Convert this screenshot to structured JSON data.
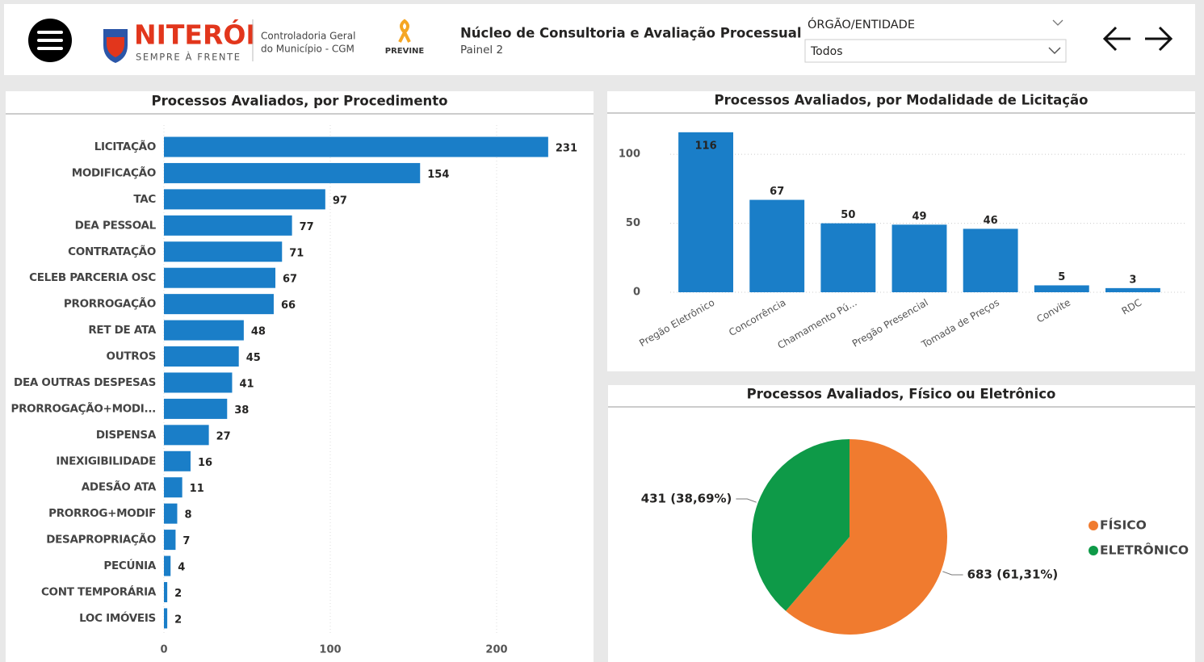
{
  "header": {
    "logo_title": "NITERÓI",
    "logo_subtitle": "SEMPRE À FRENTE",
    "org_line1": "Controladoria Geral",
    "org_line2": "do Município - CGM",
    "badge": "PREVINE",
    "title": "Núcleo de Consultoria e Avaliação Processual",
    "subtitle": "Painel 2",
    "filter_label": "ÓRGÃO/ENTIDADE",
    "filter_value": "Todos"
  },
  "chart_data": [
    {
      "type": "bar",
      "horizontal": true,
      "title": "Processos Avaliados, por Procedimento",
      "color": "#1a7ec8",
      "grid": true,
      "categories": [
        "LICITAÇÃO",
        "MODIFICAÇÃO",
        "TAC",
        "DEA PESSOAL",
        "CONTRATAÇÃO",
        "CELEB PARCERIA OSC",
        "PRORROGAÇÃO",
        "RET DE ATA",
        "OUTROS",
        "DEA OUTRAS DESPESAS",
        "PRORROGAÇÃO+MODI...",
        "DISPENSA",
        "INEXIGIBILIDADE",
        "ADESÃO ATA",
        "PRORROG+MODIF",
        "DESAPROPRIAÇÃO",
        "PECÚNIA",
        "CONT TEMPORÁRIA",
        "LOC IMÓVEIS"
      ],
      "values": [
        231,
        154,
        97,
        77,
        71,
        67,
        66,
        48,
        45,
        41,
        38,
        27,
        16,
        11,
        8,
        7,
        4,
        2,
        2
      ],
      "xlim": [
        0,
        250
      ],
      "xticks": [
        0,
        100,
        200
      ]
    },
    {
      "type": "bar",
      "horizontal": false,
      "title": "Processos Avaliados, por Modalidade de Licitação",
      "color": "#1a7ec8",
      "grid": true,
      "categories": [
        "Pregão Eletrônico",
        "Concorrência",
        "Chamamento Pú...",
        "Pregão Presencial",
        "Tomada de Preços",
        "Convite",
        "RDC"
      ],
      "values": [
        116,
        67,
        50,
        49,
        46,
        5,
        3
      ],
      "ylim": [
        0,
        120
      ],
      "yticks": [
        0,
        50,
        100
      ]
    },
    {
      "type": "pie",
      "title": "Processos Avaliados, Físico ou Eletrônico",
      "categories": [
        "FÍSICO",
        "ELETRÔNICO"
      ],
      "colors": [
        "#f07b2f",
        "#0e9a48"
      ],
      "values": [
        683,
        431
      ],
      "value_labels": [
        "683 (61,31%)",
        "431 (38,69%)"
      ]
    }
  ]
}
